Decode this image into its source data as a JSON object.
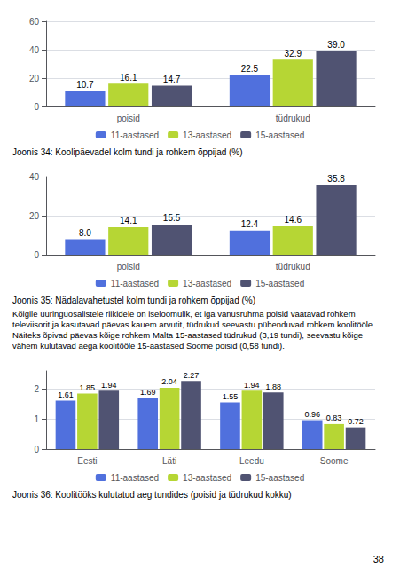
{
  "chart_data": [
    {
      "type": "bar",
      "title": "Joonis 34: Koolipäevadel kolm tundi ja rohkem õppijad (%)",
      "categories": [
        "poisid",
        "tüdrukud"
      ],
      "series": [
        {
          "name": "11-aastased",
          "values": [
            10.7,
            22.5
          ]
        },
        {
          "name": "13-aastased",
          "values": [
            16.1,
            32.9
          ]
        },
        {
          "name": "15-aastased",
          "values": [
            14.7,
            39.0
          ],
          "value_labels": [
            "14.7",
            "39.0"
          ]
        }
      ],
      "ylim": [
        0,
        60
      ],
      "yticks": [
        0,
        20,
        40,
        60
      ],
      "grid": true,
      "legend": "bottom",
      "data_labels": true
    },
    {
      "type": "bar",
      "title": "Joonis 35: Nädalavahetustel kolm tundi ja rohkem õppijad (%)",
      "categories": [
        "poisid",
        "tüdrukud"
      ],
      "series": [
        {
          "name": "11-aastased",
          "values": [
            8.0,
            12.4
          ],
          "value_labels": [
            "8.0",
            "12.4"
          ]
        },
        {
          "name": "13-aastased",
          "values": [
            14.1,
            14.6
          ]
        },
        {
          "name": "15-aastased",
          "values": [
            15.5,
            35.8
          ]
        }
      ],
      "ylim": [
        0,
        40
      ],
      "yticks": [
        0,
        20,
        40
      ],
      "grid": true,
      "legend": "bottom",
      "data_labels": true,
      "annotations": [
        "Kõigile uuringuosalistele riikidele on iseloomulik, et iga vanusrühma poisid vaatavad rohkem",
        "televiisorit ja kasutavad päevas kauem arvutit, tüdrukud seevastu pühenduvad rohkem koolitööle.",
        "Näiteks õpivad päevas kõige rohkem Malta 15-aastased tüdrukud (3,19 tundi), seevastu kõige",
        "vähem kulutavad aega koolitööle 15-aastased Soome poisid (0,58 tundi)."
      ]
    },
    {
      "type": "bar",
      "title": "Joonis 36: Koolitööks kulutatud aeg tundides (poisid ja tüdrukud kokku)",
      "categories": [
        "Eesti",
        "Läti",
        "Leedu",
        "Soome"
      ],
      "series": [
        {
          "name": "11-aastased",
          "values": [
            1.61,
            1.69,
            1.55,
            0.96
          ]
        },
        {
          "name": "13-aastased",
          "values": [
            1.85,
            2.04,
            1.94,
            0.83
          ]
        },
        {
          "name": "15-aastased",
          "values": [
            1.94,
            2.27,
            1.88,
            0.72
          ]
        }
      ],
      "ylim": [
        0,
        2.6
      ],
      "yticks": [
        0,
        1,
        2
      ],
      "grid": true,
      "legend": "bottom",
      "data_labels": true,
      "annotations": [
        "38"
      ]
    }
  ]
}
